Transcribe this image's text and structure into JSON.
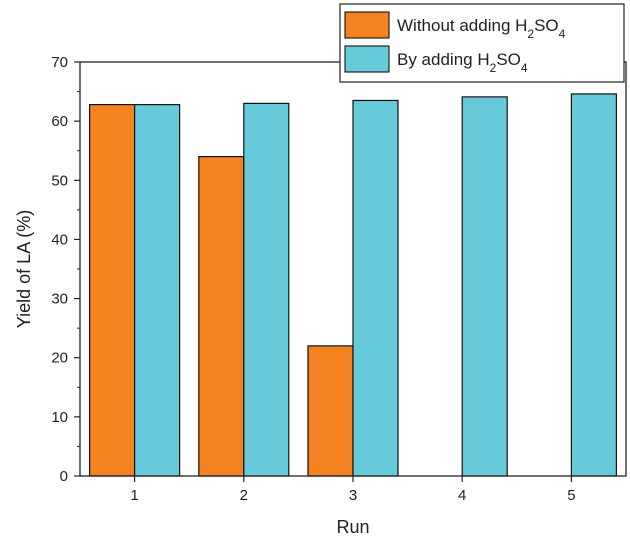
{
  "chart_data": {
    "type": "bar",
    "categories": [
      "1",
      "2",
      "3",
      "4",
      "5"
    ],
    "series": [
      {
        "name": "Without adding H2SO4",
        "values": [
          62.8,
          54.0,
          22.0,
          0,
          0
        ],
        "color": "#f58220"
      },
      {
        "name": "By adding H2SO4",
        "values": [
          62.8,
          63.0,
          63.5,
          64.1,
          64.6
        ],
        "color": "#67cada"
      }
    ],
    "title": "",
    "xlabel": "Run",
    "ylabel": "Yield of LA (%)",
    "ylim": [
      0,
      70
    ],
    "yticks": [
      0,
      10,
      20,
      30,
      40,
      50,
      60,
      70
    ],
    "grid": false,
    "legend_position": "top-right"
  }
}
